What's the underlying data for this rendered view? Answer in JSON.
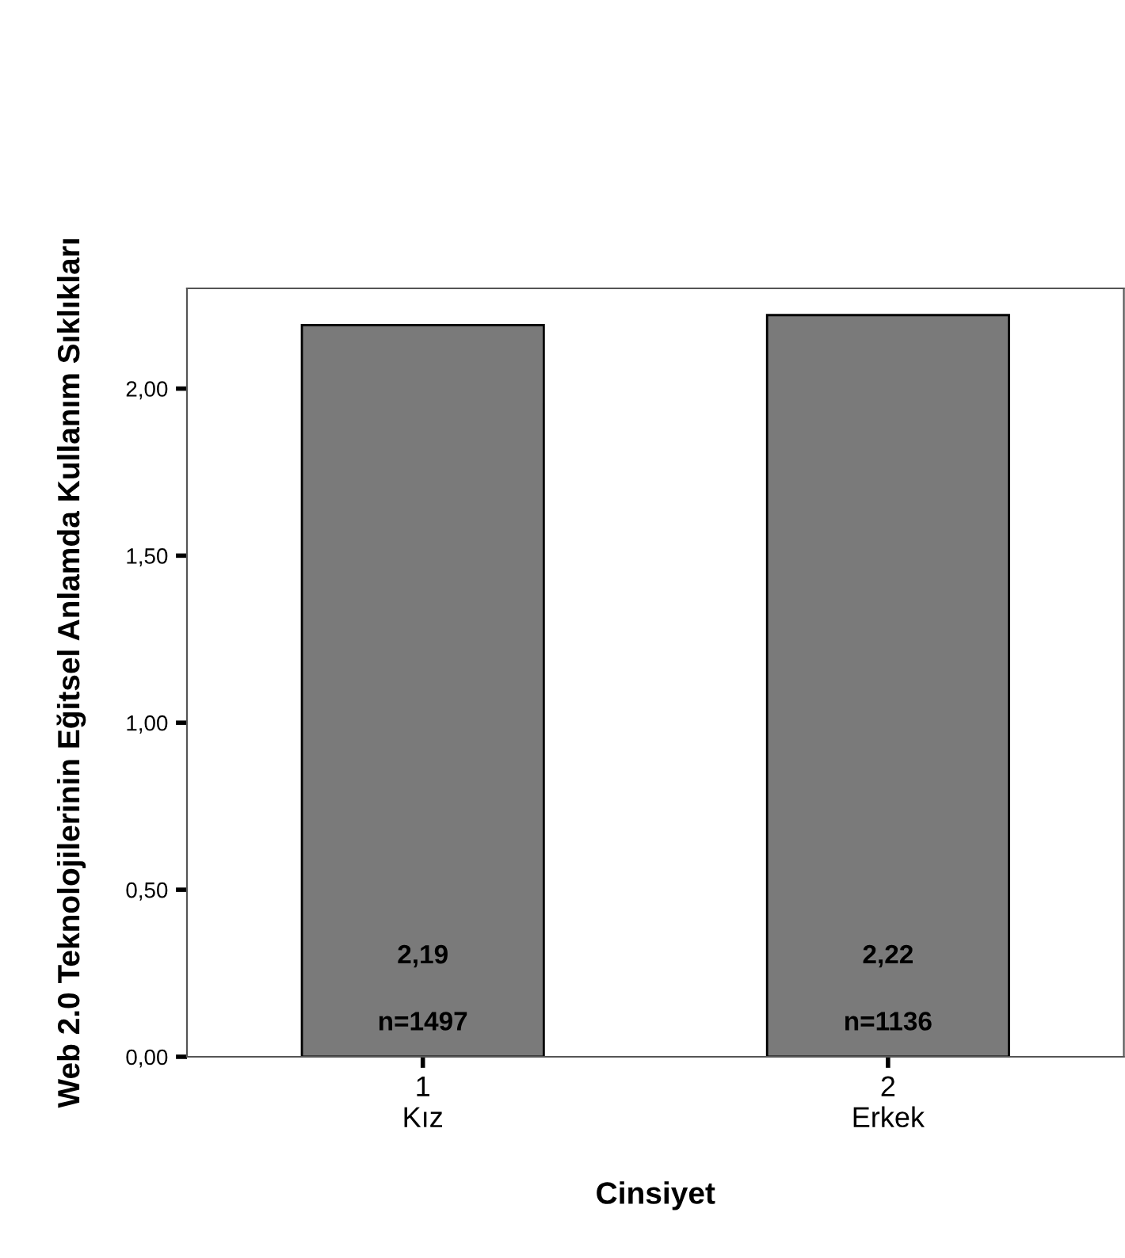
{
  "chart_data": {
    "type": "bar",
    "ylabel": "Web 2.0 Teknolojilerinin Eğitsel Anlamda Kullanım Sıklıkları",
    "xlabel": "Cinsiyet",
    "categories": [
      "1\nKız",
      "2\nErkek"
    ],
    "values": [
      2.19,
      2.22
    ],
    "value_labels": [
      "2,19",
      "2,22"
    ],
    "color": "#7a7a7a",
    "annotations": [
      "n=1497",
      "n=1136"
    ],
    "ylim": [
      0,
      2.3
    ],
    "yticks": [
      {
        "value": 0,
        "label": "0,00"
      },
      {
        "value": 0.5,
        "label": "0,50"
      },
      {
        "value": 1,
        "label": "1,00"
      },
      {
        "value": 1.5,
        "label": "1,50"
      },
      {
        "value": 2,
        "label": "2,00"
      }
    ],
    "grid": false
  }
}
